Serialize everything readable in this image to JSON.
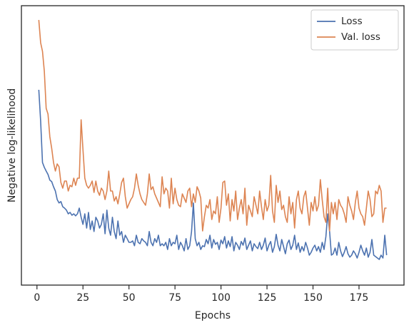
{
  "chart_data": {
    "type": "line",
    "xlabel": "Epochs",
    "ylabel": "Negative log-likelihood",
    "xlim": [
      -8.45,
      199.45
    ],
    "ylim": [
      0,
      98
    ],
    "xticks": [
      0,
      25,
      50,
      75,
      100,
      125,
      150,
      175
    ],
    "legend": "upper right",
    "x": [
      1,
      2,
      3,
      4,
      5,
      6,
      7,
      8,
      9,
      10,
      11,
      12,
      13,
      14,
      15,
      16,
      17,
      18,
      19,
      20,
      21,
      22,
      23,
      24,
      25,
      26,
      27,
      28,
      29,
      30,
      31,
      32,
      33,
      34,
      35,
      36,
      37,
      38,
      39,
      40,
      41,
      42,
      43,
      44,
      45,
      46,
      47,
      48,
      49,
      50,
      51,
      52,
      53,
      54,
      55,
      56,
      57,
      58,
      59,
      60,
      61,
      62,
      63,
      64,
      65,
      66,
      67,
      68,
      69,
      70,
      71,
      72,
      73,
      74,
      75,
      76,
      77,
      78,
      79,
      80,
      81,
      82,
      83,
      84,
      85,
      86,
      87,
      88,
      89,
      90,
      91,
      92,
      93,
      94,
      95,
      96,
      97,
      98,
      99,
      100,
      101,
      102,
      103,
      104,
      105,
      106,
      107,
      108,
      109,
      110,
      111,
      112,
      113,
      114,
      115,
      116,
      117,
      118,
      119,
      120,
      121,
      122,
      123,
      124,
      125,
      126,
      127,
      128,
      129,
      130,
      131,
      132,
      133,
      134,
      135,
      136,
      137,
      138,
      139,
      140,
      141,
      142,
      143,
      144,
      145,
      146,
      147,
      148,
      149,
      150,
      151,
      152,
      153,
      154,
      155,
      156,
      157,
      158,
      159,
      160,
      161,
      162,
      163,
      164,
      165,
      166,
      167,
      168,
      169,
      170,
      171,
      172,
      173,
      174,
      175,
      176,
      177,
      178,
      179,
      180,
      181,
      182,
      183,
      184,
      185,
      186,
      187,
      188,
      189,
      190
    ],
    "series": [
      {
        "name": "Loss",
        "color": "#4c72b0",
        "values": [
          68.5,
          57.5,
          43,
          41.3,
          40,
          38.8,
          36.8,
          36.3,
          34.5,
          33,
          30,
          28.8,
          29.3,
          27.5,
          27,
          26.3,
          25,
          25.5,
          24.5,
          25,
          24.3,
          25,
          27,
          23.8,
          21.3,
          25,
          20,
          25.5,
          19.5,
          22.5,
          18.8,
          23.8,
          22.5,
          20,
          21.3,
          25,
          18,
          26.3,
          20,
          17.5,
          23.8,
          18.8,
          16.3,
          22.5,
          17.5,
          18.8,
          15,
          17.5,
          16.3,
          15,
          15,
          15.5,
          13.8,
          17.5,
          15,
          14.5,
          16.3,
          15.5,
          15,
          13.8,
          18.8,
          15,
          13.8,
          16.3,
          15,
          17.5,
          13.8,
          14.5,
          13.8,
          15,
          12.5,
          16.3,
          13.8,
          15,
          14.5,
          17.5,
          12.5,
          15,
          13.8,
          12,
          16.3,
          12.5,
          13.8,
          18.8,
          28.8,
          16.3,
          13.8,
          15,
          12.5,
          13.8,
          13.5,
          16,
          14.5,
          17.5,
          13,
          16,
          14.3,
          15,
          12.5,
          15.8,
          14.5,
          17,
          13,
          15.5,
          13.5,
          17,
          12,
          15,
          14,
          12.5,
          15.3,
          14,
          16.5,
          12.5,
          14,
          15.5,
          12,
          14.5,
          13.5,
          12.8,
          15,
          12.5,
          14,
          16.5,
          12,
          14,
          15.3,
          11.5,
          13.5,
          17.8,
          14,
          12,
          16,
          13.5,
          11,
          14.5,
          15.8,
          12.5,
          14,
          17.5,
          12.5,
          14.8,
          11.5,
          13.5,
          12,
          15,
          13,
          10.5,
          11.5,
          13,
          14,
          12,
          13.5,
          11.5,
          15,
          12.5,
          17,
          25,
          19,
          10.5,
          11,
          13,
          10.5,
          15,
          12,
          10,
          11.5,
          13.5,
          11,
          9.8,
          10.5,
          12,
          11,
          9.5,
          11.5,
          14,
          12,
          10.5,
          13,
          9.8,
          11.5,
          16,
          10.5,
          10,
          9.5,
          9,
          10.5,
          9.5,
          17.5,
          10.5
        ]
      },
      {
        "name": "Val. loss",
        "color": "#dd8452",
        "values": [
          93,
          85,
          82,
          75,
          62,
          60,
          52,
          48,
          43,
          40,
          42.5,
          41.5,
          36,
          34,
          36.5,
          36.5,
          33,
          35,
          34.5,
          37.5,
          35,
          37.5,
          37.5,
          58,
          47.5,
          37.5,
          35,
          34,
          35,
          36.5,
          32.5,
          36.5,
          33,
          31.5,
          34,
          33,
          30,
          33,
          40,
          33,
          33,
          29.5,
          31,
          28.5,
          32,
          36,
          37.5,
          31,
          27,
          28.5,
          30,
          31,
          34,
          39,
          35,
          32,
          30,
          29,
          28,
          32,
          39,
          33.5,
          34.5,
          32,
          30.5,
          29,
          27.5,
          38,
          32,
          34,
          33,
          27,
          37.5,
          28.5,
          34,
          30,
          28,
          27.5,
          32,
          30.5,
          29,
          33,
          34,
          27.5,
          32,
          29,
          34.5,
          33,
          30.5,
          19,
          24,
          28,
          27,
          30,
          23,
          26,
          25,
          31,
          22,
          27,
          36,
          36.5,
          28,
          32,
          22.5,
          30,
          26,
          33,
          23,
          27,
          30,
          25,
          34,
          21,
          28,
          26,
          24,
          31,
          28,
          25,
          33,
          27.5,
          23,
          30,
          26,
          28,
          38.5,
          26,
          22,
          35,
          29,
          33,
          26.5,
          28,
          24,
          22,
          31,
          25,
          29,
          20,
          30,
          33,
          27,
          25,
          31,
          33,
          27,
          21,
          29,
          26,
          31,
          26,
          28,
          37,
          30,
          24,
          22,
          34,
          19,
          29,
          25,
          29,
          23,
          30,
          28,
          27,
          25,
          22,
          31,
          28,
          26,
          23,
          29,
          33,
          27,
          25,
          24,
          21,
          27,
          33,
          30,
          24,
          25,
          33,
          32,
          35,
          33,
          22,
          27,
          27
        ]
      }
    ]
  }
}
